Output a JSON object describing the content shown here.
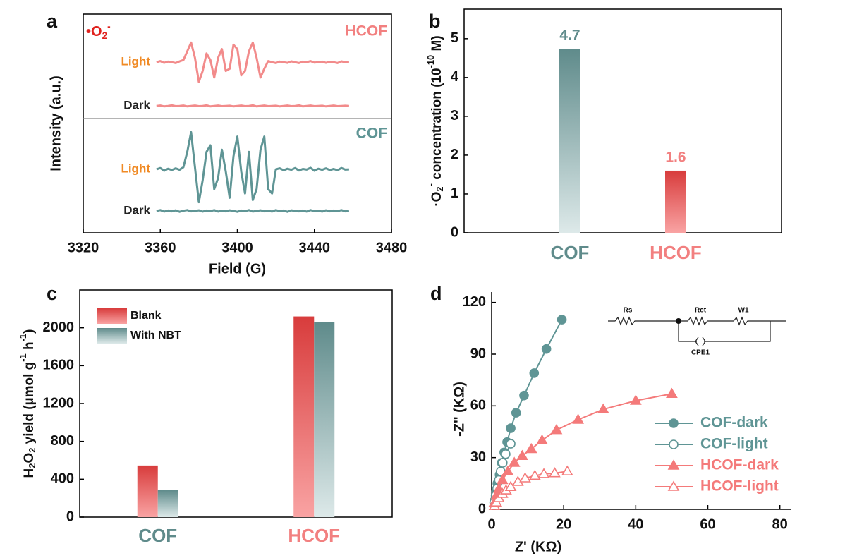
{
  "chart_data": [
    {
      "type": "line",
      "panel_label": "a",
      "xlabel": "Field (G)",
      "ylabel": "Intensity (a.u.)",
      "species_label": [
        "•O",
        "2",
        "-"
      ],
      "group_labels": [
        "HCOF",
        "COF"
      ],
      "group_colors": [
        "#f28080",
        "#5f9595"
      ],
      "xlim": [
        3320,
        3480
      ],
      "xticks": [
        3320,
        3360,
        3400,
        3440,
        3480
      ],
      "ylim": [
        0,
        100
      ],
      "x": [
        3358,
        3360,
        3362,
        3364,
        3366,
        3368,
        3370,
        3372,
        3374,
        3376,
        3378,
        3380,
        3382,
        3384,
        3386,
        3388,
        3390,
        3392,
        3394,
        3396,
        3398,
        3400,
        3402,
        3404,
        3406,
        3408,
        3410,
        3412,
        3414,
        3416,
        3418,
        3420,
        3422,
        3424,
        3426,
        3428,
        3430,
        3432,
        3434,
        3436,
        3438,
        3440,
        3442,
        3444,
        3446,
        3448,
        3450,
        3452,
        3454,
        3456,
        3458
      ],
      "series": [
        {
          "name": "Light",
          "color": "#f28b8b",
          "label_color": "#f08a24",
          "values": [
            78,
            78.5,
            77.7,
            78.3,
            78,
            77.6,
            78.4,
            79,
            83,
            87,
            80,
            69,
            74,
            82,
            79,
            71,
            80,
            84,
            74,
            75,
            86,
            84,
            72,
            74,
            83,
            87,
            80,
            71,
            75,
            78.5,
            78,
            77.6,
            78.3,
            78,
            77.7,
            78.4,
            78,
            77.6,
            78.3,
            78,
            78.5,
            77.8,
            78,
            78.3,
            77.7,
            78.2,
            78,
            77.6,
            78.4,
            78,
            78
          ]
        },
        {
          "name": "Dark",
          "color": "#f28b8b",
          "label_color": "#222222",
          "values": [
            58,
            58.2,
            57.8,
            58,
            58.3,
            57.9,
            58,
            58.2,
            57.8,
            58,
            58.2,
            57.9,
            58,
            58.3,
            57.8,
            58,
            58.2,
            57.9,
            58,
            58.1,
            57.8,
            58,
            58.2,
            57.9,
            58,
            58.3,
            57.8,
            58,
            58.2,
            57.9,
            58,
            58.1,
            57.8,
            58,
            58.2,
            57.9,
            58,
            58.3,
            57.8,
            58,
            58.2,
            57.9,
            58,
            58.1,
            57.8,
            58,
            58.2,
            57.9,
            58,
            58.1,
            58
          ]
        },
        {
          "name": "Light",
          "color": "#5f9595",
          "label_color": "#f08a24",
          "values": [
            29,
            29.6,
            28.4,
            29.3,
            28.7,
            29.5,
            28.8,
            30,
            37,
            46,
            30,
            14,
            24,
            37,
            40,
            20,
            25,
            38,
            28,
            16,
            35,
            44,
            28,
            18,
            37,
            15,
            20,
            38,
            44,
            20,
            18,
            29,
            29.5,
            28.6,
            29.3,
            28.8,
            29.6,
            28.5,
            29.2,
            28.9,
            29.7,
            28.4,
            29.3,
            28.8,
            29.5,
            28.7,
            29.2,
            28.6,
            29.6,
            28.9,
            29
          ]
        },
        {
          "name": "Dark",
          "color": "#5f9595",
          "label_color": "#222222",
          "values": [
            10,
            10.4,
            9.7,
            10.2,
            9.8,
            10.3,
            9.6,
            10.1,
            10.4,
            9.8,
            10,
            10.3,
            9.7,
            10.2,
            9.9,
            10.4,
            9.7,
            10.1,
            9.8,
            10.3,
            10,
            9.6,
            10.2,
            9.9,
            10.4,
            9.7,
            10,
            10.3,
            9.8,
            10.1,
            9.7,
            10.4,
            9.9,
            10.2,
            9.6,
            10.3,
            10,
            9.8,
            10.2,
            9.7,
            10.4,
            9.9,
            10.1,
            9.7,
            10.3,
            9.8,
            10.2,
            9.9,
            10.4,
            9.8,
            10
          ]
        }
      ]
    },
    {
      "type": "bar",
      "panel_label": "b",
      "ylabel_parts": [
        "·O",
        "2",
        "-",
        " concentration (10",
        "-10",
        " M)"
      ],
      "categories": [
        "COF",
        "HCOF"
      ],
      "category_colors": [
        "#5f8b8b",
        "#f28080"
      ],
      "values": [
        4.74,
        1.6
      ],
      "value_labels": [
        "4.7",
        "1.6"
      ],
      "colors": [
        [
          "#5f8b8b",
          "#dde9e9"
        ],
        [
          "#d83c3c",
          "#f9a3a3"
        ]
      ],
      "ylim": [
        0,
        5.76
      ],
      "yticks": [
        0,
        1,
        2,
        3,
        4,
        5
      ]
    },
    {
      "type": "bar",
      "panel_label": "c",
      "ylabel_parts": [
        "H",
        "2",
        "O",
        "2",
        " yield (µmol g",
        "-1",
        " h",
        "-1",
        ")"
      ],
      "categories": [
        "COF",
        "HCOF"
      ],
      "category_colors": [
        "#5f8b8b",
        "#f28080"
      ],
      "series": [
        {
          "name": "Blank",
          "colors": [
            "#d83c3c",
            "#f9a3a3"
          ],
          "values": [
            545,
            2120
          ]
        },
        {
          "name": "With NBT",
          "colors": [
            "#5f8b8b",
            "#dde9e9"
          ],
          "values": [
            285,
            2060
          ]
        }
      ],
      "ylim": [
        0,
        2400
      ],
      "yticks": [
        0,
        400,
        800,
        1200,
        1600,
        2000
      ]
    },
    {
      "type": "scatter",
      "panel_label": "d",
      "xlabel": "Z' (KΩ)",
      "ylabel": "-Z'' (KΩ)",
      "xlim": [
        0,
        83
      ],
      "xticks": [
        0,
        20,
        40,
        60,
        80
      ],
      "ylim": [
        0,
        126
      ],
      "yticks": [
        0,
        30,
        60,
        90,
        120
      ],
      "circuit_labels": [
        "Rs",
        "Rct",
        "W1",
        "CPE1"
      ],
      "series": [
        {
          "name": "COF-dark",
          "color": "#5f9595",
          "marker": "circle",
          "filled": true,
          "x": [
            0.8,
            1.2,
            1.6,
            2.2,
            2.8,
            3.5,
            4.3,
            5.3,
            6.8,
            9,
            11.8,
            15.2,
            19.5
          ],
          "values": [
            5,
            10,
            15,
            20,
            27,
            33,
            39,
            47,
            56,
            66,
            79,
            93,
            110
          ]
        },
        {
          "name": "COF-light",
          "color": "#5f9595",
          "marker": "circle",
          "filled": false,
          "x": [
            0.7,
            1.1,
            1.5,
            2,
            2.5,
            3.1,
            3.9,
            5.3
          ],
          "values": [
            4,
            8,
            12,
            17,
            22,
            27,
            32,
            38
          ]
        },
        {
          "name": "HCOF-dark",
          "color": "#f47a7a",
          "marker": "triangle",
          "filled": true,
          "x": [
            0.8,
            1.3,
            2,
            3,
            4.5,
            6.3,
            8.5,
            11,
            14,
            18,
            24,
            31,
            40,
            50
          ],
          "values": [
            4,
            8,
            12,
            17,
            22,
            27,
            31,
            35,
            40,
            46,
            52,
            58,
            63,
            67
          ]
        },
        {
          "name": "HCOF-light",
          "color": "#f47a7a",
          "marker": "triangle",
          "filled": false,
          "x": [
            0.8,
            1.3,
            2,
            3,
            4,
            5.3,
            7.3,
            9.3,
            12,
            14.5,
            17.5,
            21
          ],
          "values": [
            2,
            4,
            6.5,
            9,
            11,
            13,
            16,
            18,
            19.5,
            20.5,
            21,
            22
          ]
        }
      ]
    }
  ]
}
